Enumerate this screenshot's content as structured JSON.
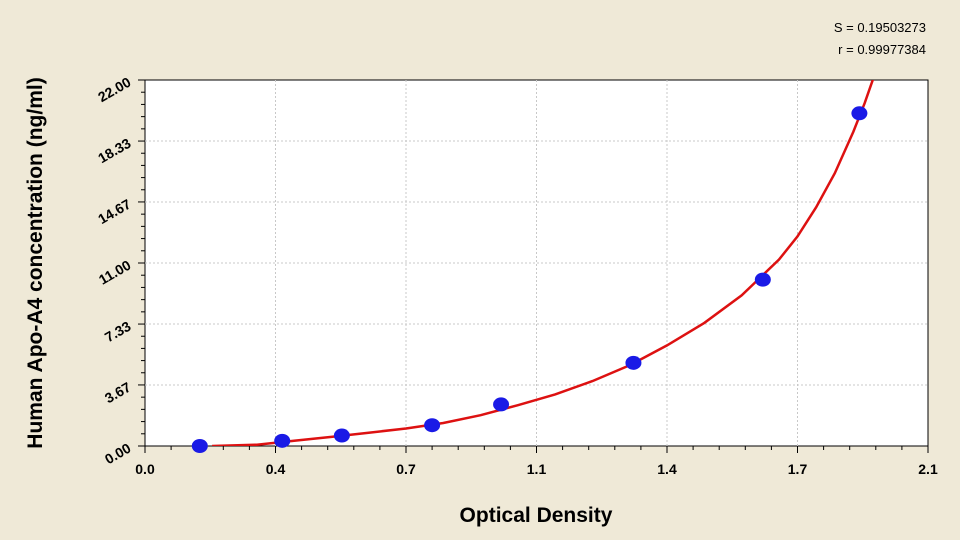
{
  "chart_data": {
    "type": "scatter",
    "xlabel": "Optical Density",
    "ylabel": "Human Apo-A4 concentration (ng/ml)",
    "xlim": [
      0.0,
      2.1
    ],
    "ylim": [
      0.0,
      22.0
    ],
    "x_ticks": [
      "0.0",
      "0.4",
      "0.7",
      "1.1",
      "1.4",
      "1.7",
      "2.1"
    ],
    "x_tick_values": [
      0.0,
      0.35,
      0.7,
      1.05,
      1.4,
      1.75,
      2.1
    ],
    "y_ticks": [
      "0.00",
      "3.67",
      "7.33",
      "11.00",
      "14.67",
      "18.33",
      "22.00"
    ],
    "y_tick_values": [
      0.0,
      3.67,
      7.33,
      11.0,
      14.67,
      18.33,
      22.0
    ],
    "grid": true,
    "stats": {
      "s_label": "S = 0.19503273",
      "r_label": "r = 0.99977384"
    },
    "points": [
      {
        "x": 0.147,
        "y": 0.0
      },
      {
        "x": 0.368,
        "y": 0.31
      },
      {
        "x": 0.528,
        "y": 0.63
      },
      {
        "x": 0.77,
        "y": 1.25
      },
      {
        "x": 0.955,
        "y": 2.5
      },
      {
        "x": 1.31,
        "y": 5.0
      },
      {
        "x": 1.657,
        "y": 10.0
      },
      {
        "x": 1.916,
        "y": 20.0
      }
    ],
    "curve": [
      {
        "x": 0.18,
        "y": 0.0
      },
      {
        "x": 0.3,
        "y": 0.08
      },
      {
        "x": 0.4,
        "y": 0.32
      },
      {
        "x": 0.5,
        "y": 0.55
      },
      {
        "x": 0.6,
        "y": 0.8
      },
      {
        "x": 0.7,
        "y": 1.05
      },
      {
        "x": 0.8,
        "y": 1.38
      },
      {
        "x": 0.9,
        "y": 1.85
      },
      {
        "x": 1.0,
        "y": 2.45
      },
      {
        "x": 1.1,
        "y": 3.1
      },
      {
        "x": 1.2,
        "y": 3.9
      },
      {
        "x": 1.3,
        "y": 4.85
      },
      {
        "x": 1.4,
        "y": 6.05
      },
      {
        "x": 1.5,
        "y": 7.4
      },
      {
        "x": 1.6,
        "y": 9.05
      },
      {
        "x": 1.7,
        "y": 11.2
      },
      {
        "x": 1.75,
        "y": 12.6
      },
      {
        "x": 1.8,
        "y": 14.35
      },
      {
        "x": 1.85,
        "y": 16.4
      },
      {
        "x": 1.9,
        "y": 18.9
      },
      {
        "x": 1.93,
        "y": 20.6
      },
      {
        "x": 1.955,
        "y": 22.2
      }
    ],
    "colors": {
      "background": "#efe9d7",
      "plot_area": "#ffffff",
      "curve": "#dd1111",
      "points": "#1a1ae6",
      "grid": "#c8c8c8"
    }
  }
}
